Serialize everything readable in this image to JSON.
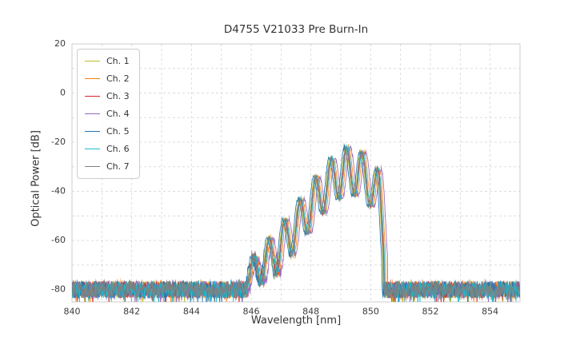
{
  "chart_data": {
    "type": "line",
    "title": "D4755 V21033 Pre Burn-In",
    "xlabel": "Wavelength [nm]",
    "ylabel": "Optical Power [dB]",
    "xlim": [
      840,
      855
    ],
    "ylim": [
      -85,
      20
    ],
    "x_ticks": [
      840,
      842,
      844,
      846,
      848,
      850,
      852,
      854
    ],
    "y_ticks": [
      20,
      0,
      -20,
      -40,
      -60,
      -80
    ],
    "x_minor_step": 1,
    "y_minor_step": 10,
    "grid": true,
    "legend_position": "upper-left",
    "noise_floor_db": -80,
    "noise_peak_to_peak_db": 7,
    "signal": {
      "start_nm": 845.85,
      "end_nm": 850.45,
      "fringe_period_nm": 0.52,
      "peak_center_nm": 849.2,
      "peak_envelope": [
        [
          845.9,
          -70
        ],
        [
          846.4,
          -62
        ],
        [
          846.9,
          -55
        ],
        [
          847.4,
          -47
        ],
        [
          847.9,
          -39
        ],
        [
          848.4,
          -30
        ],
        [
          848.8,
          -25
        ],
        [
          849.2,
          -22
        ],
        [
          849.6,
          -23
        ],
        [
          850.0,
          -27
        ],
        [
          850.3,
          -32
        ],
        [
          850.45,
          -45
        ]
      ],
      "trough_envelope": [
        [
          845.9,
          -79
        ],
        [
          846.4,
          -77
        ],
        [
          846.9,
          -73
        ],
        [
          847.4,
          -65
        ],
        [
          847.9,
          -57
        ],
        [
          848.4,
          -49
        ],
        [
          848.8,
          -44
        ],
        [
          849.2,
          -41
        ],
        [
          849.6,
          -42
        ],
        [
          850.0,
          -46
        ],
        [
          850.3,
          -55
        ],
        [
          850.45,
          -70
        ]
      ]
    },
    "series": [
      {
        "name": "Ch. 1",
        "color": "#bcbd22",
        "x_offset_nm": -0.04,
        "seed": 11
      },
      {
        "name": "Ch. 2",
        "color": "#ff7f0e",
        "x_offset_nm": 0.06,
        "seed": 22
      },
      {
        "name": "Ch. 3",
        "color": "#d62728",
        "x_offset_nm": 0.0,
        "seed": 33
      },
      {
        "name": "Ch. 4",
        "color": "#9467bd",
        "x_offset_nm": 0.12,
        "seed": 44
      },
      {
        "name": "Ch. 5",
        "color": "#1f77b4",
        "x_offset_nm": -0.08,
        "seed": 55
      },
      {
        "name": "Ch. 6",
        "color": "#17becf",
        "x_offset_nm": 0.02,
        "seed": 66
      },
      {
        "name": "Ch. 7",
        "color": "#7f7f7f",
        "x_offset_nm": -0.02,
        "seed": 77
      }
    ]
  }
}
